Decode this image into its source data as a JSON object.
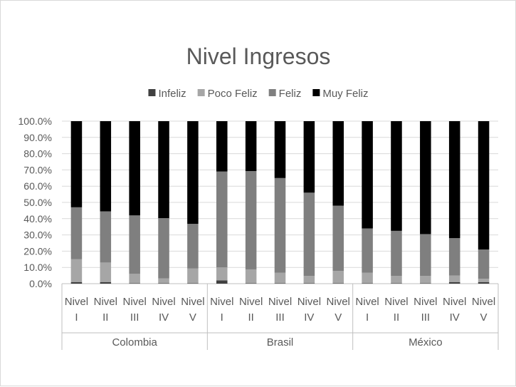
{
  "chart_data": {
    "type": "bar",
    "stacked": true,
    "title": "Nivel Ingresos",
    "legend_position": "top",
    "grid": true,
    "ylim": [
      0,
      100
    ],
    "y_ticks": [
      "0.0%",
      "10.0%",
      "20.0%",
      "30.0%",
      "40.0%",
      "50.0%",
      "60.0%",
      "70.0%",
      "80.0%",
      "90.0%",
      "100.0%"
    ],
    "groups": [
      {
        "name": "Colombia",
        "categories": [
          [
            "Nivel",
            "I"
          ],
          [
            "Nivel",
            "II"
          ],
          [
            "Nivel",
            "III"
          ],
          [
            "Nivel",
            "IV"
          ],
          [
            "Nivel",
            "V"
          ]
        ]
      },
      {
        "name": "Brasil",
        "categories": [
          [
            "Nivel",
            "I"
          ],
          [
            "Nivel",
            "II"
          ],
          [
            "Nivel",
            "III"
          ],
          [
            "Nivel",
            "IV"
          ],
          [
            "Nivel",
            "V"
          ]
        ]
      },
      {
        "name": "México",
        "categories": [
          [
            "Nivel",
            "I"
          ],
          [
            "Nivel",
            "II"
          ],
          [
            "Nivel",
            "III"
          ],
          [
            "Nivel",
            "IV"
          ],
          [
            "Nivel",
            "V"
          ]
        ]
      }
    ],
    "series": [
      {
        "name": "Infeliz",
        "color": "#404040",
        "values": [
          1.0,
          1.0,
          0.3,
          0.3,
          0.3,
          2.0,
          0.3,
          0.3,
          0.3,
          0.3,
          0.3,
          0.3,
          0.3,
          1.0,
          1.0
        ]
      },
      {
        "name": "Poco Feliz",
        "color": "#a6a6a6",
        "values": [
          14.0,
          12.0,
          5.7,
          3.0,
          9.0,
          8.0,
          8.5,
          6.5,
          4.5,
          7.5,
          6.5,
          4.5,
          4.5,
          4.0,
          2.0
        ]
      },
      {
        "name": "Feliz",
        "color": "#7f7f7f",
        "values": [
          32.0,
          31.5,
          36.0,
          37.0,
          27.5,
          59.0,
          60.5,
          58.2,
          51.2,
          40.2,
          27.2,
          27.7,
          25.7,
          23.0,
          18.0
        ]
      },
      {
        "name": "Muy Feliz",
        "color": "#000000",
        "values": [
          53.0,
          55.5,
          58.0,
          59.7,
          63.2,
          31.0,
          30.7,
          35.0,
          44.0,
          52.0,
          66.0,
          67.5,
          69.5,
          72.0,
          79.0
        ]
      }
    ]
  }
}
